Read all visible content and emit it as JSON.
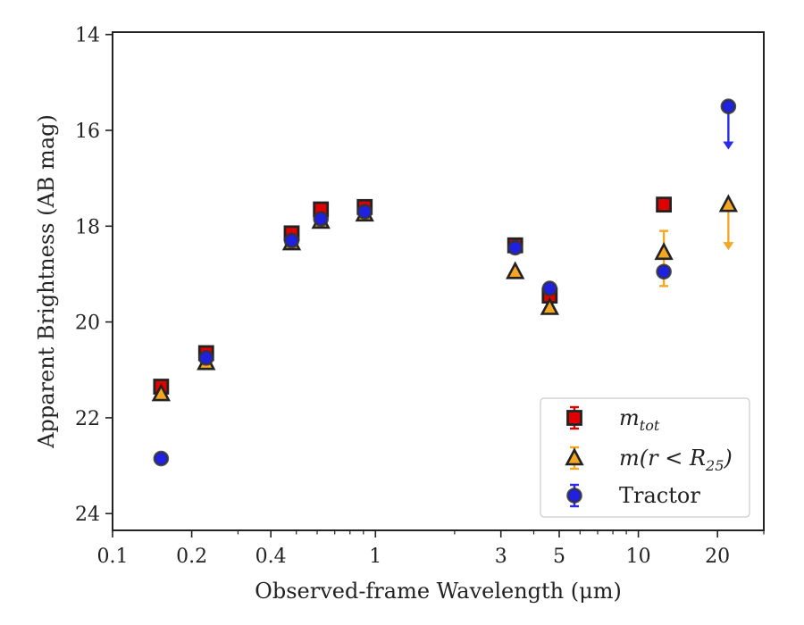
{
  "chart_data": {
    "type": "scatter",
    "xscale": "log",
    "yinverted": true,
    "xlabel": "Observed-frame Wavelength (μm)",
    "ylabel": "Apparent Brightness (AB mag)",
    "xlim": [
      0.1,
      30
    ],
    "ylim": [
      24.35,
      13.95
    ],
    "xticks": [
      0.1,
      0.2,
      0.4,
      1,
      3,
      5,
      10,
      20
    ],
    "xtick_labels": [
      "0.1",
      "0.2",
      "0.4",
      "1",
      "3",
      "5",
      "10",
      "20"
    ],
    "yticks": [
      14,
      16,
      18,
      20,
      22,
      24
    ],
    "ytick_labels": [
      "14",
      "16",
      "18",
      "20",
      "22",
      "24"
    ],
    "legend": {
      "position": "lower-right",
      "entries": [
        {
          "series": "m_tot",
          "text": "m",
          "sub": "tot"
        },
        {
          "series": "m_r25",
          "text": "m(r < R",
          "sub": "25",
          "suffix": ")"
        },
        {
          "series": "tractor",
          "text": "Tractor"
        }
      ]
    },
    "series": [
      {
        "key": "m_tot",
        "marker": "square",
        "face_color": "#e00000",
        "edge_color": "#222222",
        "err_color": "#e00000",
        "points": [
          {
            "x": 0.153,
            "y": 21.35
          },
          {
            "x": 0.227,
            "y": 20.65
          },
          {
            "x": 0.48,
            "y": 18.15
          },
          {
            "x": 0.62,
            "y": 17.65
          },
          {
            "x": 0.91,
            "y": 17.6
          },
          {
            "x": 3.4,
            "y": 18.4
          },
          {
            "x": 4.6,
            "y": 19.45
          },
          {
            "x": 12.5,
            "y": 17.55
          }
        ]
      },
      {
        "key": "m_r25",
        "marker": "triangle",
        "face_color": "#f5a623",
        "edge_color": "#222222",
        "err_color": "#f5a623",
        "points": [
          {
            "x": 0.153,
            "y": 21.5
          },
          {
            "x": 0.227,
            "y": 20.85
          },
          {
            "x": 0.48,
            "y": 18.35
          },
          {
            "x": 0.62,
            "y": 17.9
          },
          {
            "x": 0.91,
            "y": 17.75
          },
          {
            "x": 3.4,
            "y": 18.95
          },
          {
            "x": 4.6,
            "y": 19.7
          },
          {
            "x": 12.5,
            "y": 18.55,
            "err_lo": 18.1,
            "err_hi": 19.25
          },
          {
            "x": 22.0,
            "y": 17.55,
            "upper_limit": true,
            "arrow_to": 18.5
          }
        ]
      },
      {
        "key": "tractor",
        "marker": "circle",
        "face_color": "#2020e0",
        "edge_color": "#333333",
        "err_color": "#2a2ae8",
        "points": [
          {
            "x": 0.153,
            "y": 22.85
          },
          {
            "x": 0.227,
            "y": 20.75
          },
          {
            "x": 0.48,
            "y": 18.3
          },
          {
            "x": 0.62,
            "y": 17.85
          },
          {
            "x": 0.91,
            "y": 17.7
          },
          {
            "x": 3.4,
            "y": 18.45
          },
          {
            "x": 4.6,
            "y": 19.3
          },
          {
            "x": 12.5,
            "y": 18.95
          },
          {
            "x": 22.0,
            "y": 15.5,
            "upper_limit": true,
            "arrow_to": 16.4
          }
        ]
      }
    ]
  }
}
